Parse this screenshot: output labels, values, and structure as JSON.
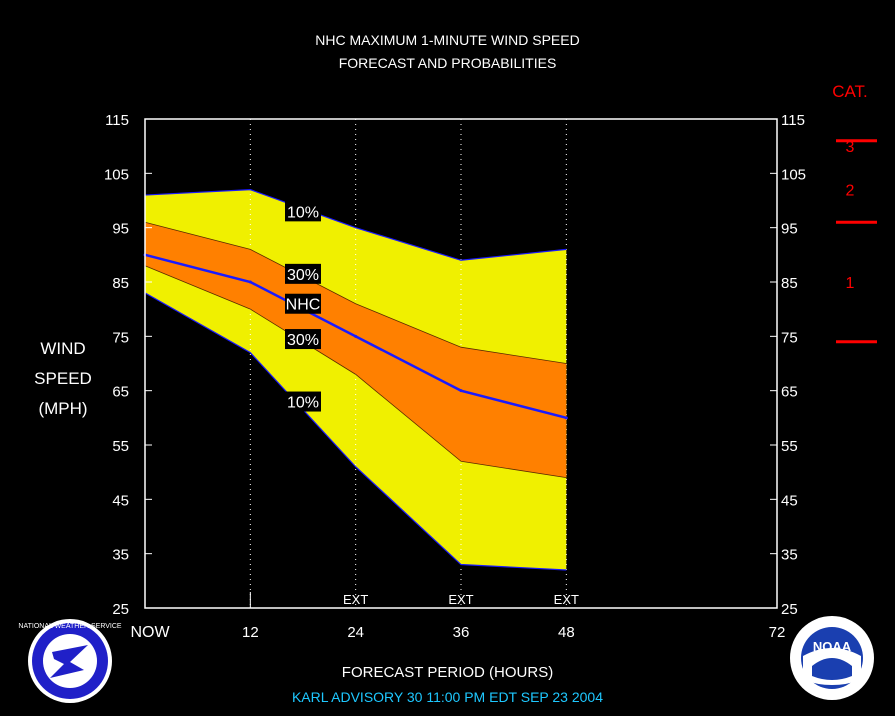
{
  "title_lines": [
    "NHC MAXIMUM 1-MINUTE WIND SPEED",
    "FORECAST AND PROBABILITIES"
  ],
  "ylabel_lines": [
    "WIND",
    "SPEED",
    "(MPH)"
  ],
  "xlabel": "FORECAST PERIOD (HOURS)",
  "advisory": "KARL   ADVISORY  30  11:00  PM  EDT  SEP  23  2004",
  "category_scale": {
    "title": "CAT.",
    "labels": [
      {
        "text": "3",
        "y": 110
      },
      {
        "text": "2",
        "y": 102
      },
      {
        "text": "1",
        "y": 85
      }
    ],
    "thresholds": [
      111,
      96,
      74
    ]
  },
  "logos": {
    "left": "NATIONAL WEATHER SERVICE",
    "right": "NOAA"
  },
  "colors": {
    "outer_band": "#f0f000",
    "inner_band": "#ff8000",
    "nhc_line": "#1a1aff",
    "category": "#ff0000",
    "footer": "#1ec8ff"
  },
  "chart_data": {
    "type": "area",
    "xlim": [
      0,
      72
    ],
    "ylim": [
      25,
      115
    ],
    "yticks": [
      25,
      35,
      45,
      55,
      65,
      75,
      85,
      95,
      105,
      115
    ],
    "xticks": [
      {
        "x": 0,
        "label": "NOW"
      },
      {
        "x": 12,
        "label": "12"
      },
      {
        "x": 24,
        "label": "24"
      },
      {
        "x": 36,
        "label": "36"
      },
      {
        "x": 48,
        "label": "48"
      },
      {
        "x": 72,
        "label": "72"
      }
    ],
    "ext_marks": [
      {
        "x": 24,
        "label": "EXT"
      },
      {
        "x": 36,
        "label": "EXT"
      },
      {
        "x": 48,
        "label": "EXT"
      }
    ],
    "x": [
      0,
      12,
      24,
      36,
      48
    ],
    "series": [
      {
        "name": "10%",
        "role": "outer_upper",
        "values": [
          101,
          102,
          95,
          89,
          91
        ]
      },
      {
        "name": "30%",
        "role": "inner_upper",
        "values": [
          96,
          91,
          81,
          73,
          70
        ]
      },
      {
        "name": "NHC",
        "role": "forecast",
        "values": [
          90,
          85,
          75,
          65,
          60
        ]
      },
      {
        "name": "30%",
        "role": "inner_lower",
        "values": [
          88,
          80,
          68,
          52,
          49
        ]
      },
      {
        "name": "10%",
        "role": "outer_lower",
        "values": [
          83,
          72,
          51,
          33,
          32
        ]
      }
    ],
    "band_labels": [
      {
        "text": "10%",
        "x": 18,
        "y": 98
      },
      {
        "text": "30%",
        "x": 18,
        "y": 86.5
      },
      {
        "text": "NHC",
        "x": 18,
        "y": 81
      },
      {
        "text": "30%",
        "x": 18,
        "y": 74.5
      },
      {
        "text": "10%",
        "x": 18,
        "y": 63
      }
    ]
  }
}
